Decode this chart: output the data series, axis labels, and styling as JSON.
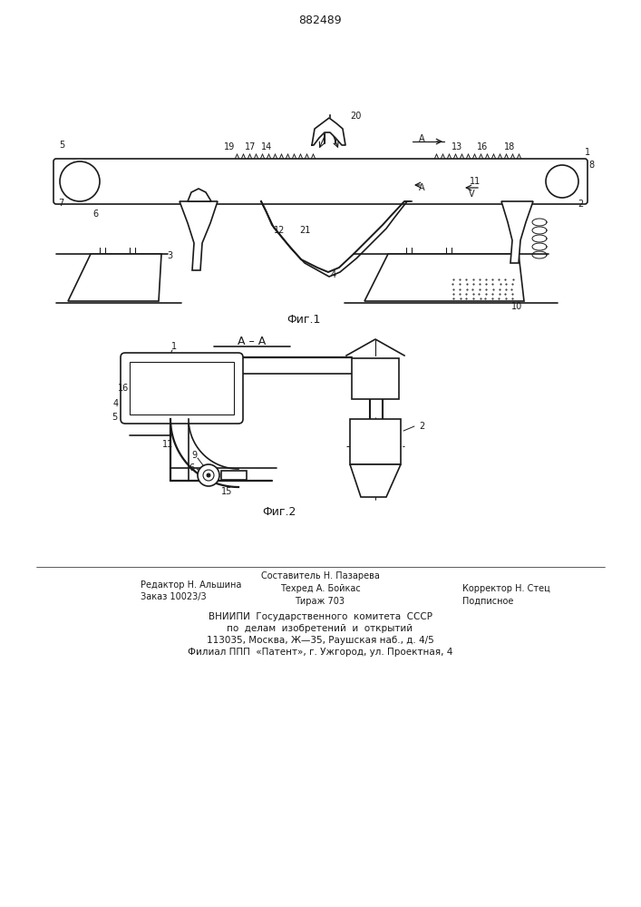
{
  "patent_number": "882489",
  "background_color": "#ffffff",
  "line_color": "#1a1a1a",
  "fig1_caption_text": "Фиг.1",
  "fig2_caption_text": "Фиг.2",
  "footer_texts": [
    [
      155,
      355,
      "Редактор Н. Альшина",
      7,
      "left"
    ],
    [
      353,
      365,
      "Составитель Н. Пазарева",
      7,
      "center"
    ],
    [
      155,
      342,
      "Заказ 10023/3",
      7,
      "left"
    ],
    [
      353,
      351,
      "Техред А. Бойкас",
      7,
      "center"
    ],
    [
      510,
      351,
      "Корректор Н. Стец",
      7,
      "left"
    ],
    [
      353,
      337,
      "Тираж 703",
      7,
      "center"
    ],
    [
      510,
      337,
      "Подписное",
      7,
      "left"
    ],
    [
      353,
      320,
      "ВНИИПИ  Государственного  комитета  СССР",
      7.5,
      "center"
    ],
    [
      353,
      307,
      "по  делам  изобретений  и  открытий",
      7.5,
      "center"
    ],
    [
      353,
      294,
      "113035, Москва, Ж—35, Раушская наб., д. 4/5",
      7.5,
      "center"
    ],
    [
      353,
      281,
      "Филиал ППП  «Патент», г. Ужгород, ул. Проектная, 4",
      7.5,
      "center"
    ]
  ]
}
